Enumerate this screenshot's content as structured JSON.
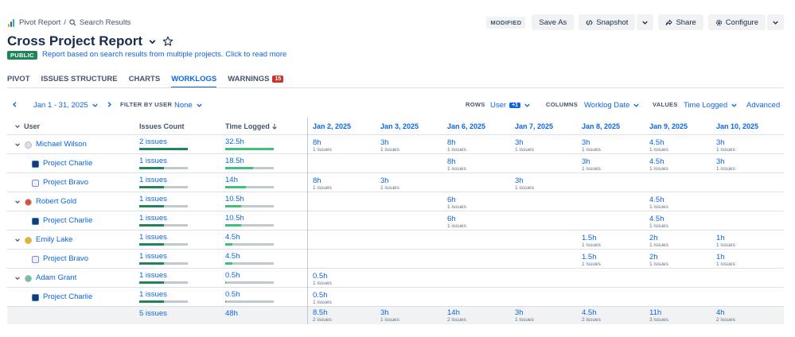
{
  "breadcrumb": {
    "first": "Pivot Report",
    "separator": "/",
    "second": "Search Results"
  },
  "title": "Cross Project Report",
  "badge": "PUBLIC",
  "subtitle": "Report based on search results from multiple projects. Click to read more",
  "top_actions": {
    "modified": "MODIFIED",
    "save_as": "Save As",
    "snapshot": "Snapshot",
    "share": "Share",
    "configure": "Configure"
  },
  "tabs": [
    {
      "label": "PIVOT",
      "active": false
    },
    {
      "label": "ISSUES STRUCTURE",
      "active": false
    },
    {
      "label": "CHARTS",
      "active": false
    },
    {
      "label": "WORKLOGS",
      "active": true
    },
    {
      "label": "WARNINGS",
      "active": false,
      "count": "15"
    }
  ],
  "toolbar": {
    "date_range": "Jan 1 - 31, 2025",
    "filter_label": "FILTER BY USER",
    "filter_value": "None",
    "rows_label": "ROWS",
    "rows_value": "User",
    "rows_badge": "+1",
    "columns_label": "COLUMNS",
    "columns_value": "Worklog Date",
    "values_label": "VALUES",
    "values_value": "Time Logged",
    "advanced": "Advanced"
  },
  "table": {
    "headers": {
      "user": "User",
      "issues": "Issues Count",
      "time": "Time Logged"
    },
    "dates": [
      "Jan 2, 2025",
      "Jan 3, 2025",
      "Jan 6, 2025",
      "Jan 7, 2025",
      "Jan 8, 2025",
      "Jan 9, 2025",
      "Jan 10, 2025"
    ],
    "rows": [
      {
        "type": "user",
        "name": "Michael Wilson",
        "avatar_color": "#dcdfe4",
        "issues": "2 issues",
        "issues_frac": 1.0,
        "time": "32.5h",
        "time_frac": 1.0,
        "cells": [
          [
            "8h",
            "1 issues"
          ],
          [
            "3h",
            "1 issues"
          ],
          [
            "8h",
            "1 issues"
          ],
          [
            "3h",
            "1 issues"
          ],
          [
            "3h",
            "1 issues"
          ],
          [
            "4.5h",
            "1 issues"
          ],
          [
            "3h",
            "1 issues"
          ]
        ]
      },
      {
        "type": "project",
        "name": "Project Charlie",
        "icon": "charlie",
        "issues": "1 issues",
        "issues_frac": 0.5,
        "time": "18.5h",
        "time_frac": 0.57,
        "cells": [
          null,
          null,
          [
            "8h",
            "1 issues"
          ],
          null,
          [
            "3h",
            "1 issues"
          ],
          [
            "4.5h",
            "1 issues"
          ],
          [
            "3h",
            "1 issues"
          ]
        ]
      },
      {
        "type": "project",
        "name": "Project Bravo",
        "icon": "bravo",
        "issues": "1 issues",
        "issues_frac": 0.5,
        "time": "14h",
        "time_frac": 0.43,
        "cells": [
          [
            "8h",
            "1 issues"
          ],
          [
            "3h",
            "1 issues"
          ],
          null,
          [
            "3h",
            "1 issues"
          ],
          null,
          null,
          null
        ]
      },
      {
        "type": "user",
        "name": "Robert Gold",
        "avatar_color": "#e2483d",
        "issues": "1 issues",
        "issues_frac": 0.5,
        "time": "10.5h",
        "time_frac": 0.32,
        "cells": [
          null,
          null,
          [
            "6h",
            "1 issues"
          ],
          null,
          null,
          [
            "4.5h",
            "1 issues"
          ],
          null
        ]
      },
      {
        "type": "project",
        "name": "Project Charlie",
        "icon": "charlie",
        "issues": "1 issues",
        "issues_frac": 0.5,
        "time": "10.5h",
        "time_frac": 0.32,
        "cells": [
          null,
          null,
          [
            "6h",
            "1 issues"
          ],
          null,
          null,
          [
            "4.5h",
            "1 issues"
          ],
          null
        ]
      },
      {
        "type": "user",
        "name": "Emily Lake",
        "avatar_color": "#f5b400",
        "issues": "1 issues",
        "issues_frac": 0.5,
        "time": "4.5h",
        "time_frac": 0.14,
        "cells": [
          null,
          null,
          null,
          null,
          [
            "1.5h",
            "1 issues"
          ],
          [
            "2h",
            "1 issues"
          ],
          [
            "1h",
            "1 issues"
          ]
        ]
      },
      {
        "type": "project",
        "name": "Project Bravo",
        "icon": "bravo",
        "issues": "1 issues",
        "issues_frac": 0.5,
        "time": "4.5h",
        "time_frac": 0.14,
        "cells": [
          null,
          null,
          null,
          null,
          [
            "1.5h",
            "1 issues"
          ],
          [
            "2h",
            "1 issues"
          ],
          [
            "1h",
            "1 issues"
          ]
        ]
      },
      {
        "type": "user",
        "name": "Adam Grant",
        "avatar_color": "#6cc3a0",
        "issues": "1 issues",
        "issues_frac": 0.5,
        "time": "0.5h",
        "time_frac": 0.015,
        "cells": [
          [
            "0.5h",
            "1 issues"
          ],
          null,
          null,
          null,
          null,
          null,
          null
        ]
      },
      {
        "type": "project",
        "name": "Project Charlie",
        "icon": "charlie",
        "issues": "1 issues",
        "issues_frac": 0.5,
        "time": "0.5h",
        "time_frac": 0.015,
        "cells": [
          [
            "0.5h",
            "1 issues"
          ],
          null,
          null,
          null,
          null,
          null,
          null
        ]
      }
    ],
    "total": {
      "issues": "5 issues",
      "time": "48h",
      "cells": [
        [
          "8.5h",
          "2 issues"
        ],
        [
          "3h",
          "1 issues"
        ],
        [
          "14h",
          "2 issues"
        ],
        [
          "3h",
          "1 issues"
        ],
        [
          "4.5h",
          "2 issues"
        ],
        [
          "11h",
          "3 issues"
        ],
        [
          "4h",
          "2 issues"
        ]
      ]
    }
  },
  "colors": {
    "accent": "#0c66e4",
    "bar_issues": "#1f845a",
    "bar_time": "#3ec07a",
    "bar_bg": "#c1c7d0"
  }
}
